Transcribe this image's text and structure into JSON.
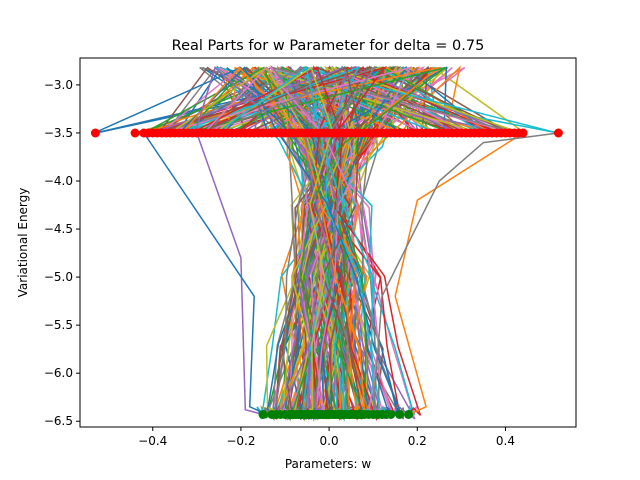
{
  "chart_data": {
    "type": "line",
    "title": "Real Parts for w Parameter for delta = 0.75",
    "xlabel": "Parameters: w",
    "ylabel": "Variational Energy",
    "xlim": [
      -0.565,
      0.56
    ],
    "ylim": [
      -6.56,
      -2.72
    ],
    "xticks": [
      -0.4,
      -0.2,
      0.0,
      0.2,
      0.4
    ],
    "xtick_labels": [
      "−0.4",
      "−0.2",
      "0.0",
      "0.2",
      "0.4"
    ],
    "yticks": [
      -3.0,
      -3.5,
      -4.0,
      -4.5,
      -5.0,
      -5.5,
      -6.0,
      -6.5
    ],
    "ytick_labels": [
      "−3.0",
      "−3.5",
      "−4.0",
      "−4.5",
      "−5.0",
      "−5.5",
      "−6.0",
      "−6.5"
    ],
    "grid": false,
    "legend": "none",
    "series_count": 200,
    "start_energy": -3.5,
    "end_energy": -6.43,
    "start_marker_color": "#ff0000",
    "end_marker_color": "#008000",
    "start_w": [
      -0.53,
      -0.44,
      -0.42,
      -0.41,
      -0.4,
      -0.39,
      -0.38,
      -0.37,
      -0.36,
      -0.35,
      -0.34,
      -0.33,
      -0.32,
      -0.31,
      -0.3,
      -0.29,
      -0.28,
      -0.27,
      -0.26,
      -0.25,
      -0.24,
      -0.23,
      -0.22,
      -0.21,
      -0.2,
      -0.19,
      -0.18,
      -0.17,
      -0.16,
      -0.15,
      -0.14,
      -0.13,
      -0.12,
      -0.11,
      -0.1,
      -0.09,
      -0.08,
      -0.07,
      -0.06,
      -0.05,
      -0.04,
      -0.03,
      -0.02,
      -0.01,
      0.0,
      0.01,
      0.02,
      0.03,
      0.04,
      0.05,
      0.06,
      0.07,
      0.08,
      0.09,
      0.1,
      0.11,
      0.12,
      0.13,
      0.14,
      0.15,
      0.16,
      0.17,
      0.18,
      0.19,
      0.2,
      0.21,
      0.22,
      0.23,
      0.24,
      0.25,
      0.26,
      0.27,
      0.28,
      0.29,
      0.3,
      0.31,
      0.32,
      0.33,
      0.34,
      0.35,
      0.36,
      0.37,
      0.38,
      0.39,
      0.4,
      0.41,
      0.42,
      0.43,
      0.44,
      0.52
    ],
    "end_w": [
      -0.15,
      -0.13,
      -0.12,
      -0.11,
      -0.1,
      -0.09,
      -0.085,
      -0.08,
      -0.075,
      -0.07,
      -0.065,
      -0.06,
      -0.055,
      -0.05,
      -0.045,
      -0.04,
      -0.035,
      -0.03,
      -0.025,
      -0.02,
      -0.015,
      -0.01,
      -0.005,
      0.0,
      0.005,
      0.01,
      0.015,
      0.02,
      0.025,
      0.03,
      0.035,
      0.04,
      0.045,
      0.05,
      0.055,
      0.06,
      0.065,
      0.07,
      0.075,
      0.08,
      0.09,
      0.1,
      0.11,
      0.12,
      0.13,
      0.14,
      0.16,
      0.18
    ],
    "palette": [
      "#1f77b4",
      "#ff7f0e",
      "#2ca02c",
      "#d62728",
      "#9467bd",
      "#8c564b",
      "#e377c2",
      "#7f7f7f",
      "#bcbd22",
      "#17becf"
    ]
  }
}
